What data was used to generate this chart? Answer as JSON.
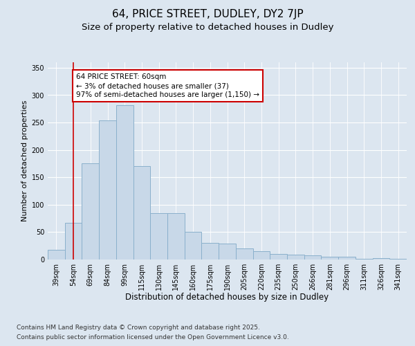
{
  "title1": "64, PRICE STREET, DUDLEY, DY2 7JP",
  "title2": "Size of property relative to detached houses in Dudley",
  "xlabel": "Distribution of detached houses by size in Dudley",
  "ylabel": "Number of detached properties",
  "categories": [
    "39sqm",
    "54sqm",
    "69sqm",
    "84sqm",
    "99sqm",
    "115sqm",
    "130sqm",
    "145sqm",
    "160sqm",
    "175sqm",
    "190sqm",
    "205sqm",
    "220sqm",
    "235sqm",
    "250sqm",
    "266sqm",
    "281sqm",
    "296sqm",
    "311sqm",
    "326sqm",
    "341sqm"
  ],
  "values": [
    18,
    67,
    176,
    254,
    282,
    171,
    85,
    85,
    51,
    30,
    29,
    20,
    15,
    10,
    9,
    7,
    5,
    5,
    1,
    2,
    1
  ],
  "bar_color": "#c8d8e8",
  "bar_edge_color": "#8ab0cc",
  "bar_edge_width": 0.7,
  "vline_x": 1.0,
  "vline_color": "#cc0000",
  "annotation_line1": "64 PRICE STREET: 60sqm",
  "annotation_line2": "← 3% of detached houses are smaller (37)",
  "annotation_line3": "97% of semi-detached houses are larger (1,150) →",
  "ylim": [
    0,
    360
  ],
  "yticks": [
    0,
    50,
    100,
    150,
    200,
    250,
    300,
    350
  ],
  "fig_bg_color": "#dce6f0",
  "plot_bg_color": "#dce6f0",
  "footer_line1": "Contains HM Land Registry data © Crown copyright and database right 2025.",
  "footer_line2": "Contains public sector information licensed under the Open Government Licence v3.0.",
  "title1_fontsize": 11,
  "title2_fontsize": 9.5,
  "xlabel_fontsize": 8.5,
  "ylabel_fontsize": 8,
  "tick_fontsize": 7,
  "annotation_fontsize": 7.5,
  "footer_fontsize": 6.5
}
